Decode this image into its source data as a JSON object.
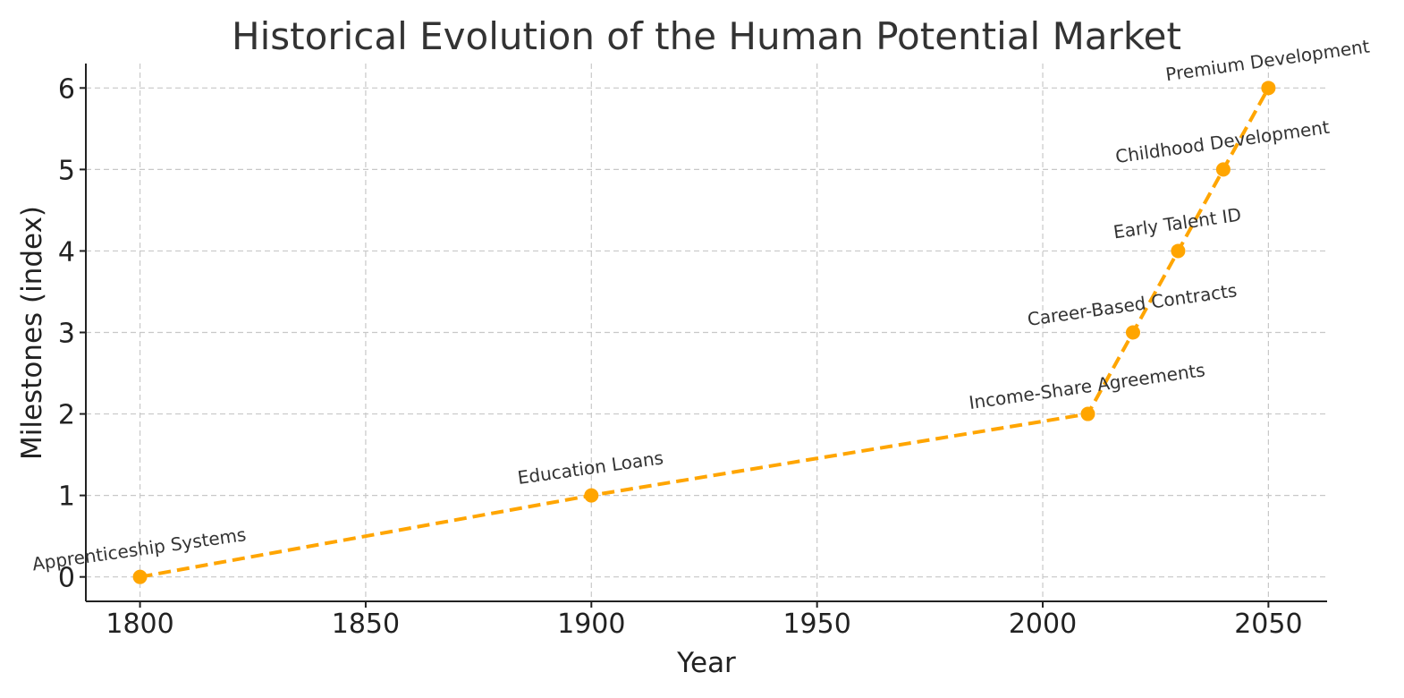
{
  "chart_data": {
    "type": "line",
    "title": "Historical Evolution of the Human Potential Market",
    "xlabel": "Year",
    "ylabel": "Milestones (index)",
    "xlim": [
      1788,
      2063
    ],
    "ylim": [
      -0.3,
      6.3
    ],
    "xticks": [
      1800,
      1850,
      1900,
      1950,
      2000,
      2050
    ],
    "yticks": [
      0,
      1,
      2,
      3,
      4,
      5,
      6
    ],
    "grid": true,
    "color": "#FFA500",
    "series": [
      {
        "x": [
          1800,
          1900,
          2010,
          2020,
          2030,
          2040,
          2050
        ],
        "y": [
          0,
          1,
          2,
          3,
          4,
          5,
          6
        ],
        "line_style": "dashed",
        "marker": "circle"
      }
    ],
    "annotations": [
      "Apprenticeship Systems",
      "Education Loans",
      "Income-Share Agreements",
      "Career-Based Contracts",
      "Early Talent ID",
      "Childhood Development",
      "Premium Development"
    ]
  }
}
